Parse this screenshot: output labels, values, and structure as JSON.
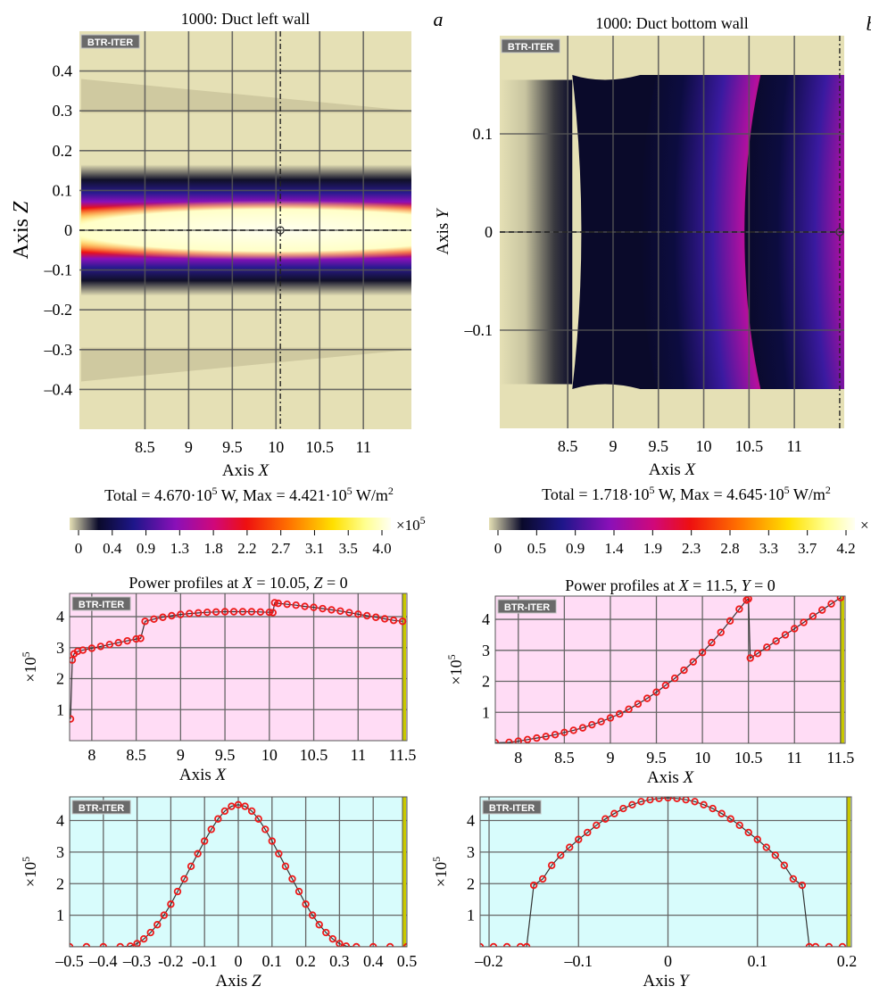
{
  "chart_data": [
    {
      "type": "heatmap",
      "panel_letter": "a",
      "title": "1000: Duct left wall",
      "watermark": "BTR-ITER",
      "xlabel": "Axis X",
      "ylabel": "Axis Z",
      "xticks": [
        "8.5",
        "9",
        "9.5",
        "10",
        "10.5",
        "11"
      ],
      "xtick_values": [
        8.5,
        9,
        9.5,
        10,
        10.5,
        11
      ],
      "yticks": [
        "0.4",
        "0.3",
        "0.2",
        "0.1",
        "0",
        "–0.1",
        "–0.2",
        "–0.3",
        "–0.4"
      ],
      "ytick_values": [
        0.4,
        0.3,
        0.2,
        0.1,
        0,
        -0.1,
        -0.2,
        -0.3,
        -0.4
      ],
      "xlim": [
        7.75,
        11.55
      ],
      "ylim": [
        -0.5,
        0.5
      ],
      "cursor_x": 10.05,
      "cursor_y": 0,
      "summary": "Total = 4.670·10^5 W, Max = 4.421·10^5 W/m^2",
      "colorbar_ticks": [
        "0",
        "0.4",
        "0.9",
        "1.3",
        "1.8",
        "2.2",
        "2.7",
        "3.1",
        "3.5",
        "4.0"
      ],
      "colorbar_multiplier": "×10^5"
    },
    {
      "type": "heatmap",
      "panel_letter": "b",
      "title": "1000: Duct bottom wall",
      "watermark": "BTR-ITER",
      "xlabel": "Axis X",
      "ylabel": "Axis Y",
      "xticks": [
        "8.5",
        "9",
        "9.5",
        "10",
        "10.5",
        "11"
      ],
      "xtick_values": [
        8.5,
        9,
        9.5,
        10,
        10.5,
        11
      ],
      "yticks": [
        "0.1",
        "0",
        "–0.1"
      ],
      "ytick_values": [
        0.1,
        0,
        -0.1
      ],
      "xlim": [
        7.75,
        11.55
      ],
      "ylim": [
        -0.2,
        0.2
      ],
      "cursor_x": 11.5,
      "cursor_y": 0,
      "summary": "Total = 1.718·10^5 W, Max = 4.645·10^5 W/m^2",
      "colorbar_ticks": [
        "0",
        "0.5",
        "0.9",
        "1.4",
        "1.9",
        "2.3",
        "2.8",
        "3.3",
        "3.7",
        "4.2"
      ],
      "colorbar_multiplier": "×"
    },
    {
      "type": "line",
      "title": "Power profiles at X = 10.05, Z = 0",
      "watermark": "BTR-ITER",
      "xlabel": "Axis X",
      "ylabel": "×10^5",
      "xticks": [
        "8",
        "8.5",
        "9",
        "9.5",
        "10",
        "10.5",
        "11",
        "11.5"
      ],
      "xtick_values": [
        8,
        8.5,
        9,
        9.5,
        10,
        10.5,
        11,
        11.5
      ],
      "yticks": [
        "1",
        "2",
        "3",
        "4"
      ],
      "ytick_values": [
        1,
        2,
        3,
        4
      ],
      "xlim": [
        7.75,
        11.55
      ],
      "ylim": [
        0,
        4.75
      ],
      "background": "#ffdcf5",
      "series": [
        {
          "x": [
            7.76,
            7.78,
            7.8,
            7.84,
            7.9,
            8.0,
            8.1,
            8.2,
            8.3,
            8.4,
            8.5,
            8.55,
            8.6,
            8.7,
            8.8,
            8.9,
            9.0,
            9.1,
            9.2,
            9.3,
            9.4,
            9.5,
            9.6,
            9.7,
            9.8,
            9.9,
            10.0,
            10.04,
            10.06,
            10.1,
            10.2,
            10.3,
            10.4,
            10.5,
            10.6,
            10.7,
            10.8,
            10.9,
            11.0,
            11.1,
            11.2,
            11.3,
            11.4,
            11.5
          ],
          "values": [
            0.7,
            2.6,
            2.8,
            2.88,
            2.92,
            2.98,
            3.04,
            3.1,
            3.16,
            3.22,
            3.28,
            3.3,
            3.85,
            3.92,
            3.98,
            4.03,
            4.07,
            4.1,
            4.12,
            4.14,
            4.15,
            4.16,
            4.16,
            4.16,
            4.16,
            4.15,
            4.14,
            4.13,
            4.45,
            4.43,
            4.4,
            4.37,
            4.33,
            4.3,
            4.26,
            4.22,
            4.18,
            4.13,
            4.08,
            4.03,
            3.98,
            3.93,
            3.88,
            3.85
          ]
        }
      ]
    },
    {
      "type": "line",
      "title": "Power profiles at X = 11.5, Y = 0",
      "watermark": "BTR-ITER",
      "xlabel": "Axis X",
      "ylabel": "×10^5",
      "xticks": [
        "8",
        "8.5",
        "9",
        "9.5",
        "10",
        "10.5",
        "11",
        "11.5"
      ],
      "xtick_values": [
        8,
        8.5,
        9,
        9.5,
        10,
        10.5,
        11,
        11.5
      ],
      "yticks": [
        "1",
        "2",
        "3",
        "4"
      ],
      "ytick_values": [
        1,
        2,
        3,
        4
      ],
      "xlim": [
        7.75,
        11.55
      ],
      "ylim": [
        0,
        4.75
      ],
      "background": "#ffdcf5",
      "series": [
        {
          "x": [
            7.75,
            7.9,
            8.0,
            8.1,
            8.2,
            8.3,
            8.4,
            8.5,
            8.6,
            8.7,
            8.8,
            8.9,
            9.0,
            9.1,
            9.2,
            9.3,
            9.4,
            9.5,
            9.6,
            9.7,
            9.8,
            9.9,
            10.0,
            10.1,
            10.2,
            10.3,
            10.4,
            10.48,
            10.5,
            10.52,
            10.6,
            10.7,
            10.8,
            10.9,
            11.0,
            11.1,
            11.2,
            11.3,
            11.4,
            11.5
          ],
          "values": [
            0.02,
            0.03,
            0.07,
            0.12,
            0.17,
            0.22,
            0.28,
            0.35,
            0.42,
            0.5,
            0.6,
            0.7,
            0.82,
            0.95,
            1.1,
            1.27,
            1.45,
            1.65,
            1.87,
            2.1,
            2.36,
            2.63,
            2.93,
            3.25,
            3.58,
            3.95,
            4.33,
            4.62,
            4.66,
            2.75,
            2.9,
            3.1,
            3.3,
            3.5,
            3.7,
            3.9,
            4.1,
            4.3,
            4.5,
            4.7
          ]
        }
      ]
    },
    {
      "type": "line",
      "watermark": "BTR-ITER",
      "xlabel": "Axis Z",
      "ylabel": "×10^5",
      "xticks": [
        "–0.5",
        "–0.4",
        "–0.3",
        "-0.2",
        "-0.1",
        "0",
        "0.1",
        "0.2",
        "0.3",
        "0.4",
        "0.5"
      ],
      "xtick_values": [
        -0.5,
        -0.4,
        -0.3,
        -0.2,
        -0.1,
        0,
        0.1,
        0.2,
        0.3,
        0.4,
        0.5
      ],
      "yticks": [
        "1",
        "2",
        "3",
        "4"
      ],
      "ytick_values": [
        1,
        2,
        3,
        4
      ],
      "xlim": [
        -0.5,
        0.5
      ],
      "ylim": [
        0,
        4.75
      ],
      "background": "#d8fcfc",
      "series": [
        {
          "x": [
            -0.5,
            -0.45,
            -0.4,
            -0.35,
            -0.32,
            -0.3,
            -0.28,
            -0.26,
            -0.24,
            -0.22,
            -0.2,
            -0.18,
            -0.16,
            -0.14,
            -0.12,
            -0.1,
            -0.08,
            -0.06,
            -0.04,
            -0.02,
            0,
            0.02,
            0.04,
            0.06,
            0.08,
            0.1,
            0.12,
            0.14,
            0.16,
            0.18,
            0.2,
            0.22,
            0.24,
            0.26,
            0.28,
            0.3,
            0.32,
            0.35,
            0.4,
            0.45,
            0.5
          ],
          "values": [
            0,
            0,
            0,
            0,
            0.02,
            0.1,
            0.25,
            0.45,
            0.7,
            1.0,
            1.35,
            1.75,
            2.15,
            2.55,
            2.95,
            3.35,
            3.72,
            4.05,
            4.3,
            4.45,
            4.5,
            4.45,
            4.3,
            4.05,
            3.72,
            3.35,
            2.95,
            2.55,
            2.15,
            1.75,
            1.35,
            1.0,
            0.7,
            0.45,
            0.25,
            0.1,
            0.02,
            0,
            0,
            0,
            0
          ]
        }
      ]
    },
    {
      "type": "line",
      "watermark": "BTR-ITER",
      "xlabel": "Axis Y",
      "ylabel": "×10^5",
      "xticks": [
        "–0.2",
        "–0.1",
        "0",
        "0.1",
        "0.2"
      ],
      "xtick_values": [
        -0.2,
        -0.1,
        0,
        0.1,
        0.2
      ],
      "yticks": [
        "1",
        "2",
        "3",
        "4"
      ],
      "ytick_values": [
        1,
        2,
        3,
        4
      ],
      "xlim": [
        -0.21,
        0.205
      ],
      "ylim": [
        0,
        4.75
      ],
      "background": "#d8fcfc",
      "series": [
        {
          "x": [
            -0.21,
            -0.195,
            -0.18,
            -0.165,
            -0.158,
            -0.15,
            -0.14,
            -0.13,
            -0.12,
            -0.11,
            -0.1,
            -0.09,
            -0.08,
            -0.07,
            -0.06,
            -0.05,
            -0.04,
            -0.03,
            -0.02,
            -0.01,
            0,
            0.01,
            0.02,
            0.03,
            0.04,
            0.05,
            0.06,
            0.07,
            0.08,
            0.09,
            0.1,
            0.11,
            0.12,
            0.13,
            0.14,
            0.15,
            0.158,
            0.165,
            0.18,
            0.195
          ],
          "values": [
            0,
            0,
            0,
            0,
            0,
            1.95,
            2.15,
            2.58,
            2.9,
            3.15,
            3.4,
            3.62,
            3.85,
            4.05,
            4.22,
            4.38,
            4.5,
            4.6,
            4.66,
            4.7,
            4.72,
            4.7,
            4.66,
            4.6,
            4.5,
            4.38,
            4.22,
            4.05,
            3.85,
            3.62,
            3.4,
            3.15,
            2.9,
            2.58,
            2.15,
            1.95,
            0,
            0,
            0,
            0
          ]
        }
      ]
    }
  ]
}
